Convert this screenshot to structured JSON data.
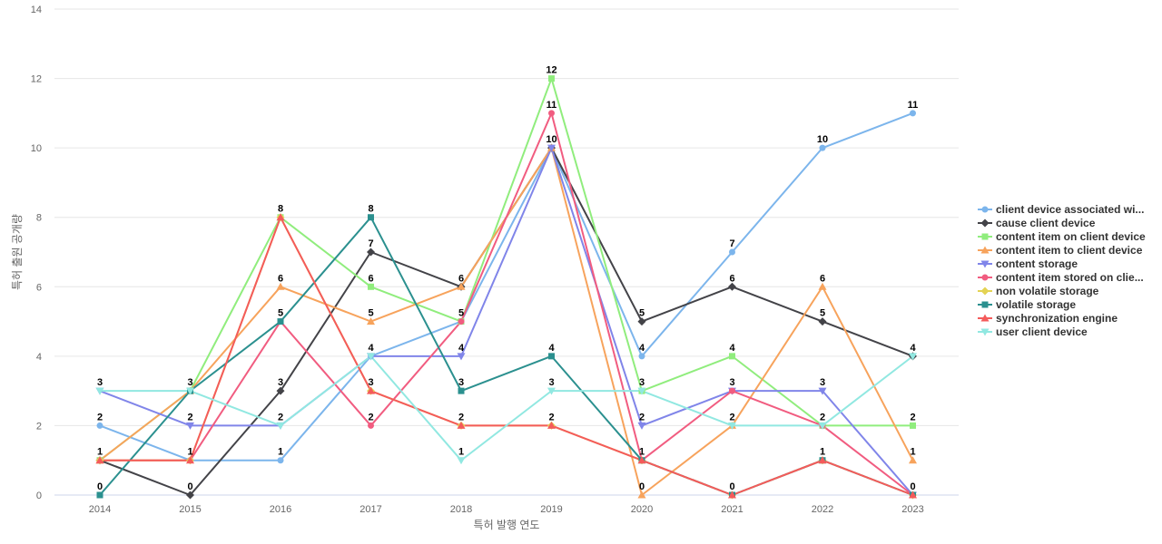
{
  "chart_data": {
    "type": "line",
    "title": "",
    "xlabel": "특허 발행 연도",
    "ylabel": "특허 출원 공개량",
    "ylim": [
      0,
      14
    ],
    "yticks": [
      0,
      2,
      4,
      6,
      8,
      10,
      12,
      14
    ],
    "grid": true,
    "legend_position": "right",
    "x": [
      "2014",
      "2015",
      "2016",
      "2017",
      "2018",
      "2019",
      "2020",
      "2021",
      "2022",
      "2023"
    ],
    "series": [
      {
        "name": "client device associated wi...",
        "color": "#7cb5ec",
        "marker": "circle",
        "values": [
          2,
          1,
          1,
          4,
          5,
          10,
          4,
          7,
          10,
          11
        ]
      },
      {
        "name": "cause client device",
        "color": "#434348",
        "marker": "diamond",
        "values": [
          1,
          0,
          3,
          7,
          6,
          10,
          5,
          6,
          5,
          4
        ]
      },
      {
        "name": "content item on client device",
        "color": "#90ed7d",
        "marker": "square",
        "values": [
          1,
          3,
          8,
          6,
          5,
          12,
          3,
          4,
          2,
          2
        ]
      },
      {
        "name": "content item to client device",
        "color": "#f7a35c",
        "marker": "triangle",
        "values": [
          1,
          3,
          6,
          5,
          6,
          10,
          0,
          2,
          6,
          1
        ]
      },
      {
        "name": "content storage",
        "color": "#8085e9",
        "marker": "triangle-down",
        "values": [
          3,
          2,
          2,
          4,
          4,
          10,
          2,
          3,
          3,
          0
        ]
      },
      {
        "name": "content item stored on clie...",
        "color": "#f15c80",
        "marker": "circle",
        "values": [
          1,
          1,
          5,
          2,
          5,
          11,
          1,
          3,
          2,
          0
        ]
      },
      {
        "name": "non volatile storage",
        "color": "#e4d354",
        "marker": "diamond",
        "values": [
          1,
          1,
          8,
          3,
          2,
          2,
          1,
          0,
          1,
          0
        ]
      },
      {
        "name": "volatile storage",
        "color": "#2b908f",
        "marker": "square",
        "values": [
          0,
          3,
          5,
          8,
          3,
          4,
          1,
          0,
          1,
          0
        ]
      },
      {
        "name": "synchronization engine",
        "color": "#f45b5b",
        "marker": "triangle",
        "values": [
          1,
          1,
          8,
          3,
          2,
          2,
          1,
          0,
          1,
          0
        ]
      },
      {
        "name": "user client device",
        "color": "#91e8e1",
        "marker": "triangle-down",
        "values": [
          3,
          3,
          2,
          4,
          1,
          3,
          3,
          2,
          2,
          4
        ]
      }
    ],
    "data_labels": [
      {
        "x": "2014",
        "y": 3,
        "text": "3"
      },
      {
        "x": "2014",
        "y": 2,
        "text": "2"
      },
      {
        "x": "2014",
        "y": 1,
        "text": "1"
      },
      {
        "x": "2014",
        "y": 0,
        "text": "0"
      },
      {
        "x": "2015",
        "y": 3,
        "text": "3"
      },
      {
        "x": "2015",
        "y": 2,
        "text": "2"
      },
      {
        "x": "2015",
        "y": 1,
        "text": "1"
      },
      {
        "x": "2015",
        "y": 0,
        "text": "0"
      },
      {
        "x": "2016",
        "y": 8,
        "text": "8"
      },
      {
        "x": "2016",
        "y": 6,
        "text": "6"
      },
      {
        "x": "2016",
        "y": 5,
        "text": "5"
      },
      {
        "x": "2016",
        "y": 3,
        "text": "3"
      },
      {
        "x": "2016",
        "y": 2,
        "text": "2"
      },
      {
        "x": "2016",
        "y": 1,
        "text": "1"
      },
      {
        "x": "2017",
        "y": 8,
        "text": "8"
      },
      {
        "x": "2017",
        "y": 7,
        "text": "7"
      },
      {
        "x": "2017",
        "y": 6,
        "text": "6"
      },
      {
        "x": "2017",
        "y": 5,
        "text": "5"
      },
      {
        "x": "2017",
        "y": 4,
        "text": "4"
      },
      {
        "x": "2017",
        "y": 3,
        "text": "3"
      },
      {
        "x": "2017",
        "y": 2,
        "text": "2"
      },
      {
        "x": "2018",
        "y": 6,
        "text": "6"
      },
      {
        "x": "2018",
        "y": 5,
        "text": "5"
      },
      {
        "x": "2018",
        "y": 4,
        "text": "4"
      },
      {
        "x": "2018",
        "y": 3,
        "text": "3"
      },
      {
        "x": "2018",
        "y": 2,
        "text": "2"
      },
      {
        "x": "2018",
        "y": 1,
        "text": "1"
      },
      {
        "x": "2019",
        "y": 12,
        "text": "12"
      },
      {
        "x": "2019",
        "y": 11,
        "text": "11"
      },
      {
        "x": "2019",
        "y": 10,
        "text": "10"
      },
      {
        "x": "2019",
        "y": 4,
        "text": "4"
      },
      {
        "x": "2019",
        "y": 3,
        "text": "3"
      },
      {
        "x": "2019",
        "y": 2,
        "text": "2"
      },
      {
        "x": "2020",
        "y": 5,
        "text": "5"
      },
      {
        "x": "2020",
        "y": 4,
        "text": "4"
      },
      {
        "x": "2020",
        "y": 3,
        "text": "3"
      },
      {
        "x": "2020",
        "y": 2,
        "text": "2"
      },
      {
        "x": "2020",
        "y": 1,
        "text": "1"
      },
      {
        "x": "2020",
        "y": 0,
        "text": "0"
      },
      {
        "x": "2021",
        "y": 7,
        "text": "7"
      },
      {
        "x": "2021",
        "y": 6,
        "text": "6"
      },
      {
        "x": "2021",
        "y": 4,
        "text": "4"
      },
      {
        "x": "2021",
        "y": 3,
        "text": "3"
      },
      {
        "x": "2021",
        "y": 2,
        "text": "2"
      },
      {
        "x": "2021",
        "y": 0,
        "text": "0"
      },
      {
        "x": "2022",
        "y": 10,
        "text": "10"
      },
      {
        "x": "2022",
        "y": 6,
        "text": "6"
      },
      {
        "x": "2022",
        "y": 5,
        "text": "5"
      },
      {
        "x": "2022",
        "y": 3,
        "text": "3"
      },
      {
        "x": "2022",
        "y": 2,
        "text": "2"
      },
      {
        "x": "2022",
        "y": 1,
        "text": "1"
      },
      {
        "x": "2023",
        "y": 11,
        "text": "11"
      },
      {
        "x": "2023",
        "y": 4,
        "text": "4"
      },
      {
        "x": "2023",
        "y": 2,
        "text": "2"
      },
      {
        "x": "2023",
        "y": 1,
        "text": "1"
      },
      {
        "x": "2023",
        "y": 0,
        "text": "0"
      }
    ]
  }
}
